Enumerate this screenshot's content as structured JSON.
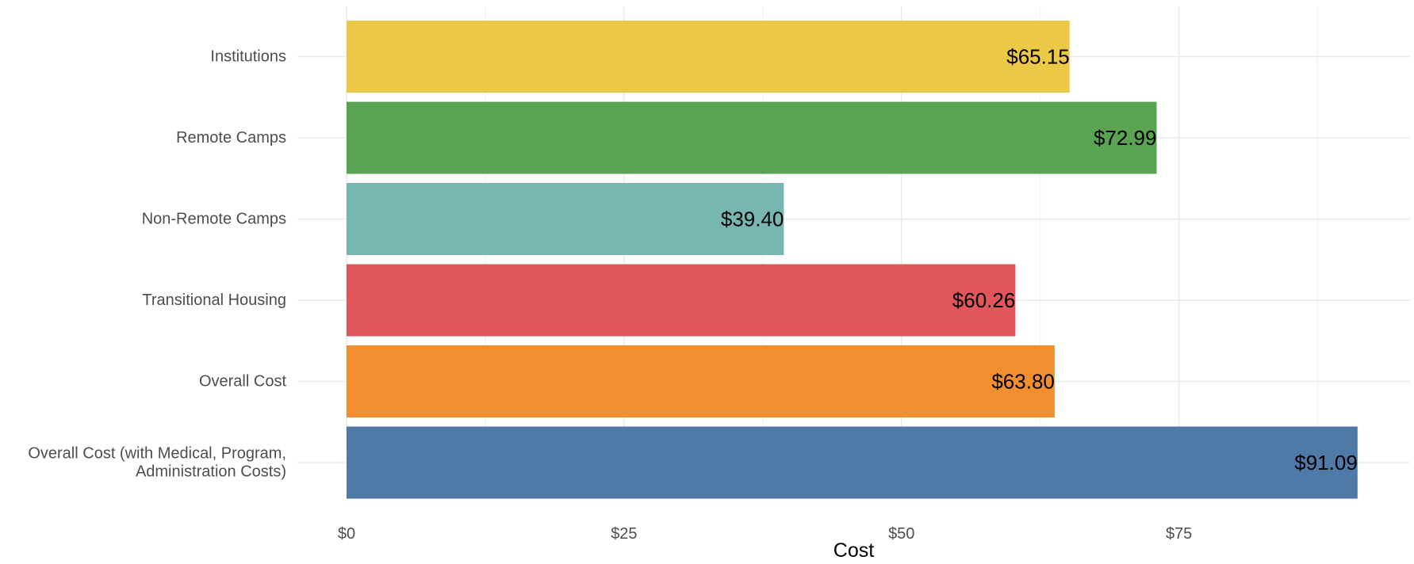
{
  "chart_data": {
    "type": "bar",
    "orientation": "horizontal",
    "title": "",
    "xlabel": "Cost",
    "ylabel": "",
    "xlim": [
      0,
      95
    ],
    "x_ticks": [
      0,
      25,
      50,
      75
    ],
    "x_tick_labels": [
      "$0",
      "$25",
      "$50",
      "$75"
    ],
    "grid": true,
    "legend": "none",
    "categories": [
      "Institutions",
      "Remote Camps",
      "Non-Remote Camps",
      "Transitional Housing",
      "Overall Cost",
      "Overall Cost (with Medical, Program, Administration Costs)"
    ],
    "category_display_lines": [
      [
        "Institutions"
      ],
      [
        "Remote Camps"
      ],
      [
        "Non-Remote Camps"
      ],
      [
        "Transitional Housing"
      ],
      [
        "Overall Cost"
      ],
      [
        "Overall Cost (with Medical, Program,",
        "Administration Costs)"
      ]
    ],
    "values": [
      65.15,
      72.99,
      39.4,
      60.26,
      63.8,
      91.09
    ],
    "value_labels": [
      "$65.15",
      "$72.99",
      "$39.40",
      "$60.26",
      "$63.80",
      "$91.09"
    ],
    "colors": [
      "#ebc847",
      "#5aa451",
      "#77b6b1",
      "#e0565b",
      "#f28e2f",
      "#4f79a6"
    ]
  }
}
